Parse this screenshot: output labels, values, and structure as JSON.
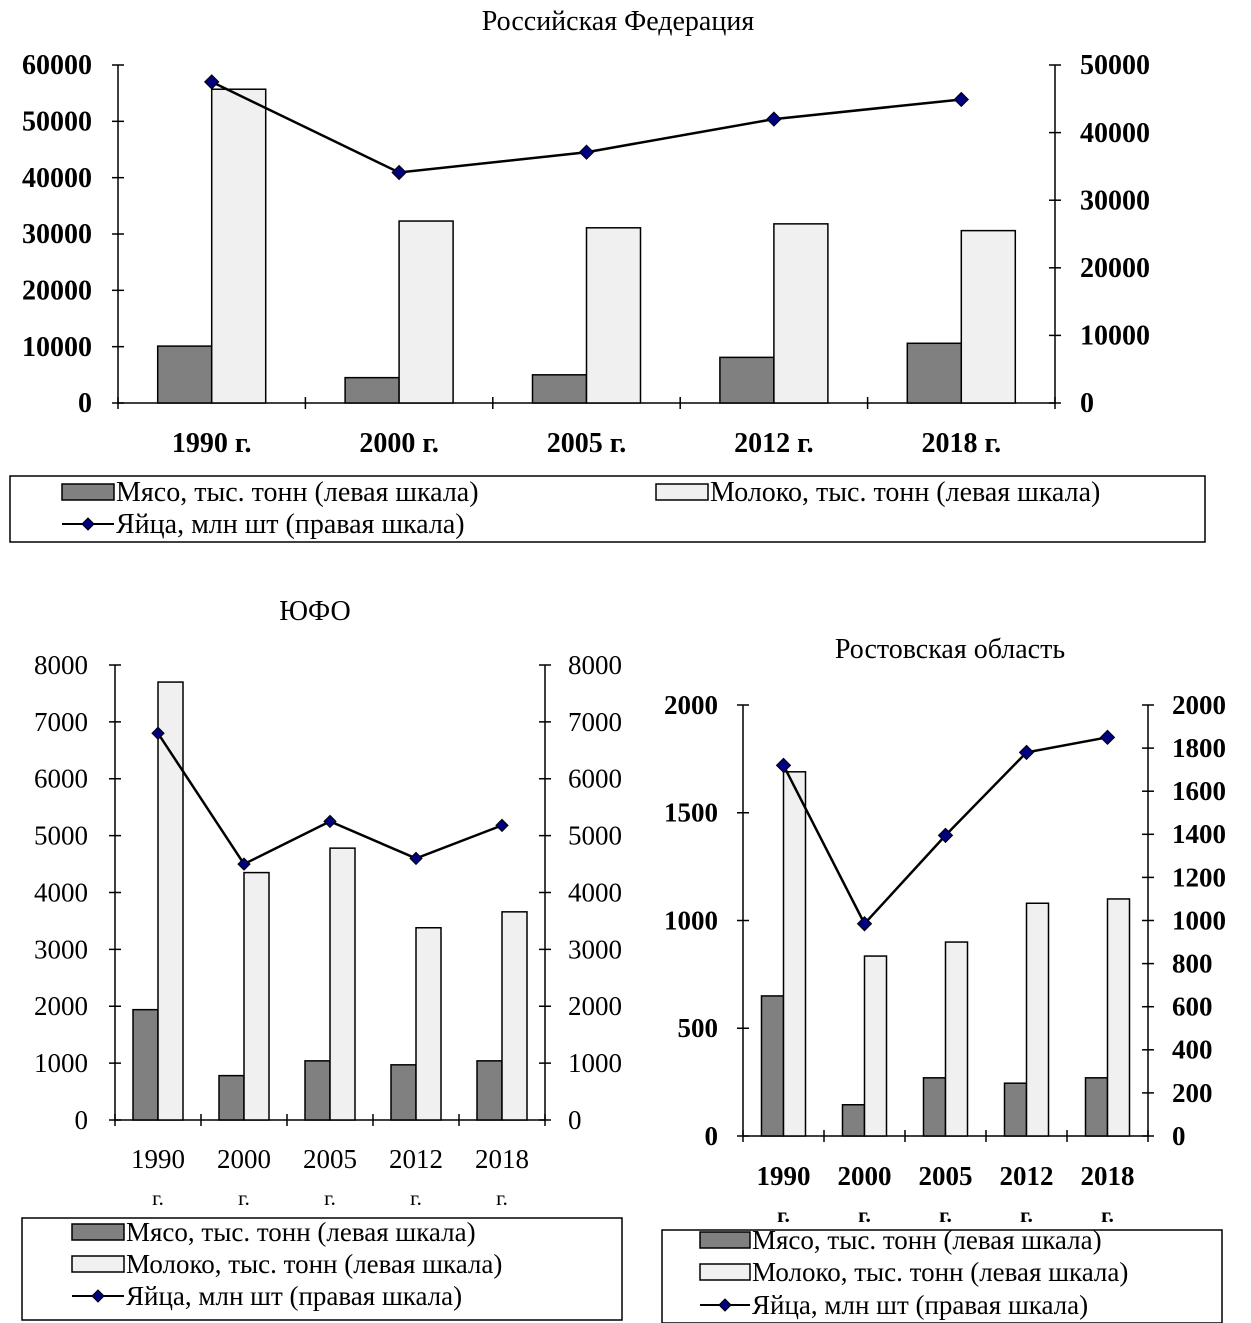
{
  "chart_data": [
    {
      "type": "bar",
      "title": "Российская Федерация",
      "categories": [
        "1990 г.",
        "2000 г.",
        "2005 г.",
        "2012 г.",
        "2018 г."
      ],
      "series": [
        {
          "name": "Мясо, тыс. тонн (левая шкала)",
          "type": "bar",
          "axis": "left",
          "color": "#808080",
          "values": [
            10100,
            4500,
            5000,
            8100,
            10600
          ]
        },
        {
          "name": "Молоко, тыс. тонн (левая шкала)",
          "type": "bar",
          "axis": "left",
          "color": "#f0f0f0",
          "values": [
            55700,
            32300,
            31100,
            31800,
            30600
          ]
        },
        {
          "name": "Яйца, млн шт (правая шкала)",
          "type": "line",
          "axis": "right",
          "color": "#00007f",
          "values": [
            47500,
            34100,
            37100,
            42000,
            44900
          ]
        }
      ],
      "ylim_left": [
        0,
        60000
      ],
      "yticks_left": [
        "0",
        "10000",
        "20000",
        "30000",
        "40000",
        "50000",
        "60000"
      ],
      "ylim_right": [
        0,
        50000
      ],
      "yticks_right": [
        "0",
        "10000",
        "20000",
        "30000",
        "40000",
        "50000"
      ],
      "legend_position": "bottom"
    },
    {
      "type": "bar",
      "title": "ЮФО",
      "categories": [
        "1990 г.",
        "2000 г.",
        "2005 г.",
        "2012 г.",
        "2018 г."
      ],
      "series": [
        {
          "name": "Мясо, тыс. тонн (левая шкала)",
          "type": "bar",
          "axis": "left",
          "color": "#808080",
          "values": [
            1940,
            780,
            1040,
            970,
            1040
          ]
        },
        {
          "name": "Молоко, тыс. тонн (левая шкала)",
          "type": "bar",
          "axis": "left",
          "color": "#f0f0f0",
          "values": [
            7700,
            4350,
            4780,
            3380,
            3660
          ]
        },
        {
          "name": "Яйца, млн шт (правая шкала)",
          "type": "line",
          "axis": "right",
          "color": "#00007f",
          "values": [
            6800,
            4500,
            5250,
            4600,
            5180
          ]
        }
      ],
      "ylim_left": [
        0,
        8000
      ],
      "yticks_left": [
        "0",
        "1000",
        "2000",
        "3000",
        "4000",
        "5000",
        "6000",
        "7000",
        "8000"
      ],
      "ylim_right": [
        0,
        8000
      ],
      "yticks_right": [
        "0",
        "1000",
        "2000",
        "3000",
        "4000",
        "5000",
        "6000",
        "7000",
        "8000"
      ],
      "legend_position": "bottom"
    },
    {
      "type": "bar",
      "title": "Ростовская область",
      "categories": [
        "1990 г.",
        "2000 г.",
        "2005 г.",
        "2012 г.",
        "2018 г."
      ],
      "series": [
        {
          "name": "Мясо, тыс. тонн (левая шкала)",
          "type": "bar",
          "axis": "left",
          "color": "#808080",
          "values": [
            650,
            145,
            270,
            245,
            270
          ]
        },
        {
          "name": "Молоко, тыс. тонн (левая шкала)",
          "type": "bar",
          "axis": "left",
          "color": "#f0f0f0",
          "values": [
            1690,
            835,
            900,
            1080,
            1100
          ]
        },
        {
          "name": "Яйца, млн шт (правая шкала)",
          "type": "line",
          "axis": "right",
          "color": "#00007f",
          "values": [
            1720,
            985,
            1395,
            1780,
            1850
          ]
        }
      ],
      "ylim_left": [
        0,
        2000
      ],
      "yticks_left": [
        "0",
        "500",
        "1000",
        "1500",
        "2000"
      ],
      "ylim_right": [
        0,
        2000
      ],
      "yticks_right": [
        "0",
        "200",
        "400",
        "600",
        "800",
        "1000",
        "1200",
        "1400",
        "1600",
        "1800",
        "2000"
      ],
      "legend_position": "bottom"
    }
  ]
}
